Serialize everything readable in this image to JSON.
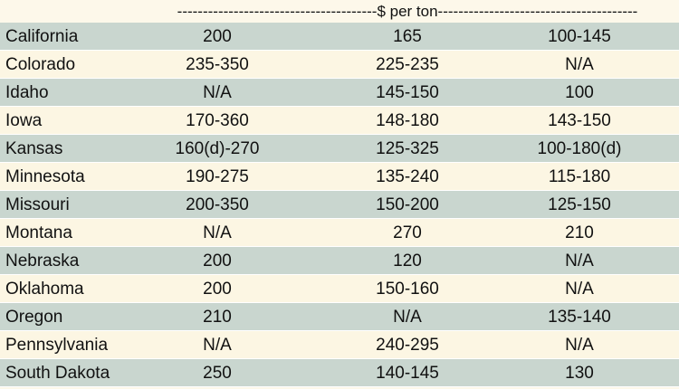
{
  "header": {
    "span_label": "---------------------------------------$ per ton---------------------------------------"
  },
  "table": {
    "rows": [
      [
        "California",
        "200",
        "165",
        "100-145"
      ],
      [
        "Colorado",
        "235-350",
        "225-235",
        "N/A"
      ],
      [
        "Idaho",
        "N/A",
        "145-150",
        "100"
      ],
      [
        "Iowa",
        "170-360",
        "148-180",
        "143-150"
      ],
      [
        "Kansas",
        "160(d)-270",
        "125-325",
        "100-180(d)"
      ],
      [
        "Minnesota",
        "190-275",
        "135-240",
        "115-180"
      ],
      [
        "Missouri",
        "200-350",
        "150-200",
        "125-150"
      ],
      [
        "Montana",
        "N/A",
        "270",
        "210"
      ],
      [
        "Nebraska",
        "200",
        "120",
        "N/A"
      ],
      [
        "Oklahoma",
        "200",
        "150-160",
        "N/A"
      ],
      [
        "Oregon",
        "210",
        "N/A",
        "135-140"
      ],
      [
        "Pennsylvania",
        "N/A",
        "240-295",
        "N/A"
      ],
      [
        "South Dakota",
        "250",
        "140-145",
        "130"
      ]
    ]
  }
}
